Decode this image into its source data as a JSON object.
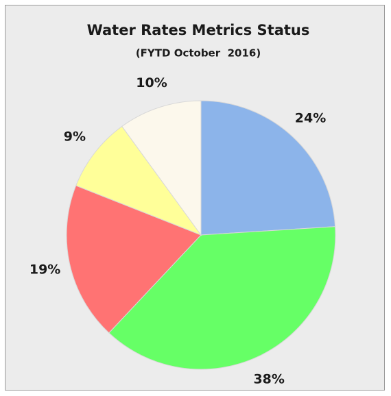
{
  "chart_data": {
    "type": "pie",
    "title": "Water Rates Metrics Status",
    "subtitle": "(FYTD October  2016)",
    "values": [
      24,
      38,
      19,
      9,
      10
    ],
    "value_labels": [
      "24%",
      "38%",
      "19%",
      "9%",
      "10%"
    ],
    "colors": [
      "#8cb4ea",
      "#66ff66",
      "#ff7373",
      "#ffff99",
      "#fcf8ec"
    ]
  }
}
